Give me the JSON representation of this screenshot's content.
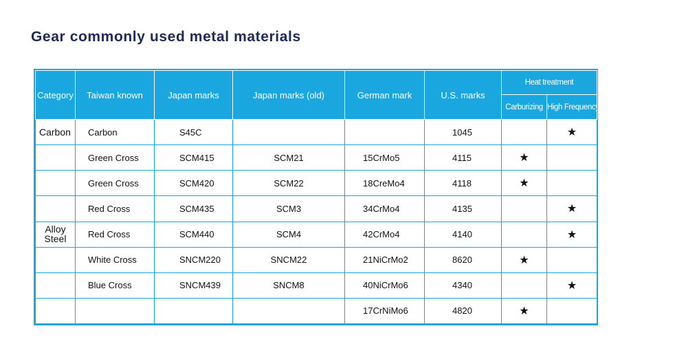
{
  "title": "Gear commonly used metal materials",
  "headers": {
    "category": "Category",
    "taiwan": "Taiwan known",
    "japan": "Japan marks",
    "japan_old": "Japan marks (old)",
    "german": "German mark",
    "us": "U.S. marks",
    "heat": "Heat treatment",
    "carburizing": "Carburizing",
    "high_frequency": "High Frequency"
  },
  "categories": {
    "carbon": "Carbon",
    "alloy": "Alloy Steel"
  },
  "star": "★",
  "rows": [
    {
      "taiwan": "Carbon",
      "japan": "S45C",
      "japan_old": "",
      "german": "",
      "us": "1045",
      "carburizing": false,
      "high_frequency": true
    },
    {
      "taiwan": "Green Cross",
      "japan": "SCM415",
      "japan_old": "SCM21",
      "german": "15CrMo5",
      "us": "4115",
      "carburizing": true,
      "high_frequency": false
    },
    {
      "taiwan": "Green Cross",
      "japan": "SCM420",
      "japan_old": "SCM22",
      "german": "18CreMo4",
      "us": "4118",
      "carburizing": true,
      "high_frequency": false
    },
    {
      "taiwan": "Red Cross",
      "japan": "SCM435",
      "japan_old": "SCM3",
      "german": "34CrMo4",
      "us": "4135",
      "carburizing": false,
      "high_frequency": true
    },
    {
      "taiwan": "Red Cross",
      "japan": "SCM440",
      "japan_old": "SCM4",
      "german": "42CrMo4",
      "us": "4140",
      "carburizing": false,
      "high_frequency": true
    },
    {
      "taiwan": "White Cross",
      "japan": "SNCM220",
      "japan_old": "SNCM22",
      "german": "21NiCrMo2",
      "us": "8620",
      "carburizing": true,
      "high_frequency": false
    },
    {
      "taiwan": "Blue Cross",
      "japan": "SNCM439",
      "japan_old": "SNCM8",
      "german": "40NiCrMo6",
      "us": "4340",
      "carburizing": false,
      "high_frequency": true
    },
    {
      "taiwan": "",
      "japan": "",
      "japan_old": "",
      "german": "17CrNiMo6",
      "us": "4820",
      "carburizing": true,
      "high_frequency": false
    }
  ],
  "colors": {
    "header_bg": "#1aa7e0",
    "title": "#1e2a5a",
    "grid": "#1aa7e0"
  }
}
